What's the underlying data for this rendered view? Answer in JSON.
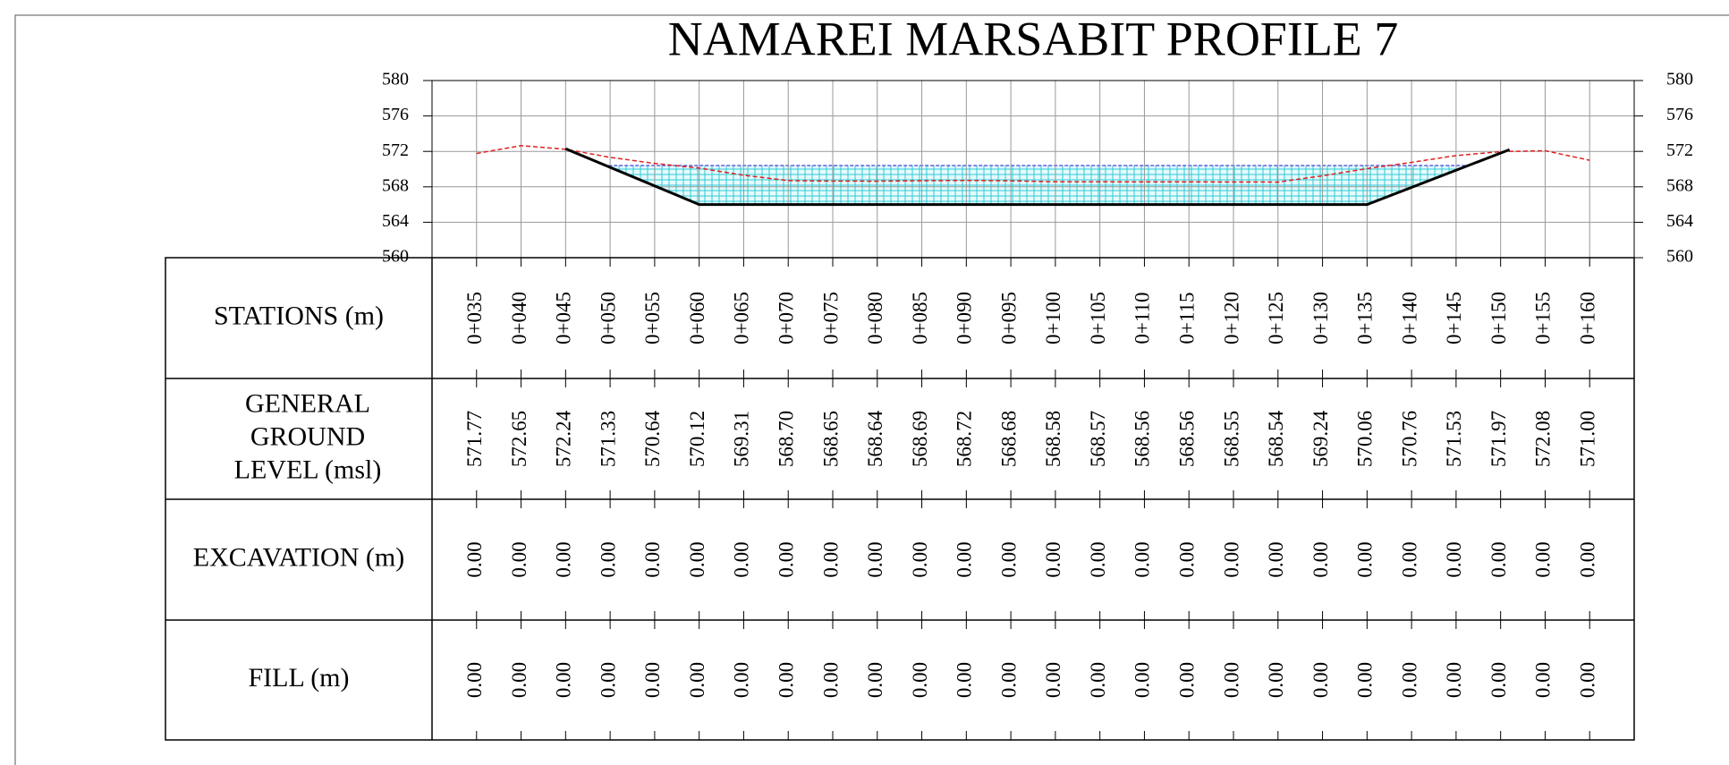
{
  "chart_data": {
    "type": "line",
    "title": "NAMAREI MARSABIT PROFILE 7",
    "categories": [
      "0+035",
      "0+040",
      "0+045",
      "0+050",
      "0+055",
      "0+060",
      "0+065",
      "0+070",
      "0+075",
      "0+080",
      "0+085",
      "0+090",
      "0+095",
      "0+100",
      "0+105",
      "0+110",
      "0+115",
      "0+120",
      "0+125",
      "0+130",
      "0+135",
      "0+140",
      "0+145",
      "0+150",
      "0+155",
      "0+160"
    ],
    "x": [
      35,
      40,
      45,
      50,
      55,
      60,
      65,
      70,
      75,
      80,
      85,
      90,
      95,
      100,
      105,
      110,
      115,
      120,
      125,
      130,
      135,
      140,
      145,
      150,
      155,
      160
    ],
    "series": [
      {
        "color": "#e02020",
        "values": [
          571.77,
          572.65,
          572.24,
          571.33,
          570.64,
          570.12,
          569.31,
          568.7,
          568.65,
          568.64,
          568.69,
          568.72,
          568.68,
          568.58,
          568.57,
          568.56,
          568.56,
          568.55,
          568.54,
          569.24,
          570.06,
          570.76,
          571.53,
          571.97,
          572.08,
          571
        ],
        "value_labels": [
          "571.77",
          "572.65",
          "572.24",
          "571.33",
          "570.64",
          "570.12",
          "569.31",
          "568.70",
          "568.65",
          "568.64",
          "568.69",
          "568.72",
          "568.68",
          "568.58",
          "568.57",
          "568.56",
          "568.56",
          "568.55",
          "568.54",
          "569.24",
          "570.06",
          "570.76",
          "571.53",
          "571.97",
          "572.08",
          "571.00"
        ]
      }
    ],
    "design_section": {
      "color": "#000000",
      "x": [
        45,
        60,
        135,
        151
      ],
      "values": [
        572.3,
        566,
        566,
        572.2
      ]
    },
    "water_level": 570.4,
    "xlim": [
      30,
      165
    ],
    "ylim": [
      560,
      580
    ],
    "yticks": [
      560,
      564,
      568,
      572,
      576,
      580
    ],
    "grid": true,
    "table": {
      "rows": [
        {
          "label": [
            "STATIONS (m)"
          ]
        },
        {
          "label": [
            "GENERAL",
            "GROUND",
            "LEVEL (msl)"
          ]
        },
        {
          "label": [
            "EXCAVATION (m)"
          ],
          "values": [
            "0.00",
            "0.00",
            "0.00",
            "0.00",
            "0.00",
            "0.00",
            "0.00",
            "0.00",
            "0.00",
            "0.00",
            "0.00",
            "0.00",
            "0.00",
            "0.00",
            "0.00",
            "0.00",
            "0.00",
            "0.00",
            "0.00",
            "0.00",
            "0.00",
            "0.00",
            "0.00",
            "0.00",
            "0.00",
            "0.00"
          ]
        },
        {
          "label": [
            "FILL (m)"
          ],
          "values": [
            "0.00",
            "0.00",
            "0.00",
            "0.00",
            "0.00",
            "0.00",
            "0.00",
            "0.00",
            "0.00",
            "0.00",
            "0.00",
            "0.00",
            "0.00",
            "0.00",
            "0.00",
            "0.00",
            "0.00",
            "0.00",
            "0.00",
            "0.00",
            "0.00",
            "0.00",
            "0.00",
            "0.00",
            "0.00",
            "0.00"
          ]
        }
      ]
    }
  }
}
